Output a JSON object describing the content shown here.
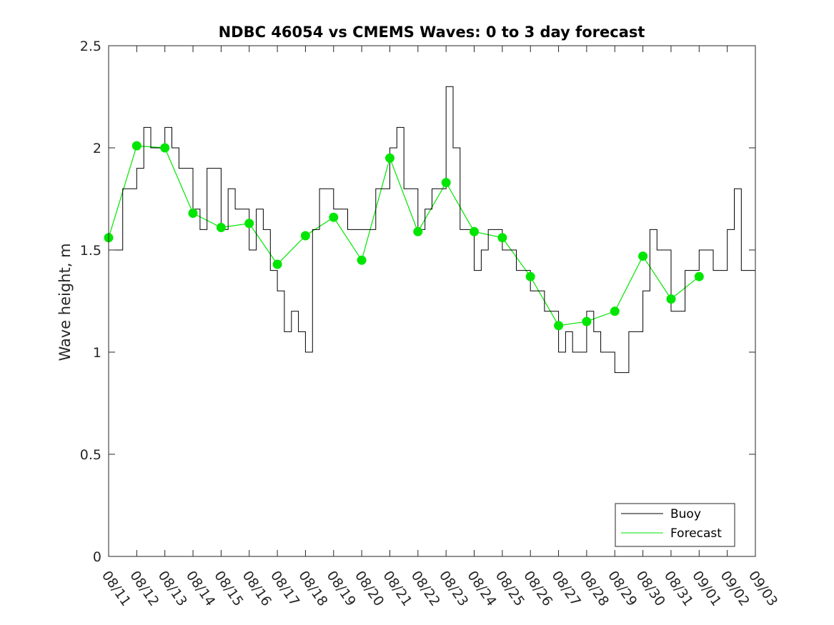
{
  "chart_data": {
    "type": "line",
    "title": "NDBC 46054 vs CMEMS Waves: 0 to 3 day forecast",
    "xlabel": "",
    "ylabel": "Wave height, m",
    "ylim": [
      0,
      2.5
    ],
    "yticks": [
      0,
      0.5,
      1,
      1.5,
      2,
      2.5
    ],
    "ytick_labels": [
      "0",
      "0.5",
      "1",
      "1.5",
      "2",
      "2.5"
    ],
    "xlim_days": [
      0,
      23
    ],
    "xtick_labels": [
      "08/11",
      "08/12",
      "08/13",
      "08/14",
      "08/15",
      "08/16",
      "08/17",
      "08/18",
      "08/19",
      "08/20",
      "08/21",
      "08/22",
      "08/23",
      "08/24",
      "08/25",
      "08/26",
      "08/27",
      "08/28",
      "08/29",
      "08/30",
      "08/31",
      "09/01",
      "09/02",
      "09/03"
    ],
    "grid": false,
    "legend_position": "bottom-right",
    "colors": {
      "buoy": "#000000",
      "forecast": "#00e600",
      "axis": "#262626"
    },
    "series": [
      {
        "name": "Buoy",
        "style": "step",
        "x": [
          "08/11 00:00",
          "08/11 12:00",
          "08/12 00:00",
          "08/12 06:00",
          "08/12 12:00",
          "08/13 00:00",
          "08/13 06:00",
          "08/13 12:00",
          "08/14 00:00",
          "08/14 06:00",
          "08/14 12:00",
          "08/15 00:00",
          "08/15 06:00",
          "08/15 12:00",
          "08/16 00:00",
          "08/16 06:00",
          "08/16 12:00",
          "08/16 18:00",
          "08/17 00:00",
          "08/17 06:00",
          "08/17 12:00",
          "08/17 18:00",
          "08/18 00:00",
          "08/18 06:00",
          "08/18 12:00",
          "08/19 00:00",
          "08/19 12:00",
          "08/20 00:00",
          "08/20 12:00",
          "08/21 00:00",
          "08/21 06:00",
          "08/21 12:00",
          "08/22 00:00",
          "08/22 06:00",
          "08/22 12:00",
          "08/23 00:00",
          "08/23 06:00",
          "08/23 12:00",
          "08/24 00:00",
          "08/24 06:00",
          "08/24 12:00",
          "08/25 00:00",
          "08/25 12:00",
          "08/26 00:00",
          "08/26 12:00",
          "08/27 00:00",
          "08/27 06:00",
          "08/27 12:00",
          "08/28 00:00",
          "08/28 06:00",
          "08/28 12:00",
          "08/29 00:00",
          "08/29 12:00",
          "08/30 00:00",
          "08/30 06:00",
          "08/30 12:00",
          "08/31 00:00",
          "08/31 12:00",
          "09/01 00:00",
          "09/01 12:00",
          "09/02 00:00",
          "09/02 06:00",
          "09/02 12:00",
          "09/03 00:00"
        ],
        "values": [
          1.5,
          1.8,
          1.9,
          2.1,
          2.0,
          2.1,
          2.0,
          1.9,
          1.7,
          1.6,
          1.9,
          1.6,
          1.8,
          1.7,
          1.5,
          1.7,
          1.6,
          1.4,
          1.3,
          1.1,
          1.2,
          1.1,
          1.0,
          1.6,
          1.8,
          1.7,
          1.6,
          1.6,
          1.8,
          2.0,
          2.1,
          1.8,
          1.6,
          1.7,
          1.8,
          2.3,
          2.0,
          1.6,
          1.4,
          1.5,
          1.6,
          1.5,
          1.4,
          1.3,
          1.2,
          1.0,
          1.1,
          1.0,
          1.2,
          1.1,
          1.0,
          0.9,
          1.1,
          1.3,
          1.6,
          1.5,
          1.2,
          1.4,
          1.5,
          1.4,
          1.6,
          1.8,
          1.4,
          1.5
        ]
      },
      {
        "name": "Forecast",
        "style": "line",
        "x": [
          "08/11 00:00",
          "08/12 00:00",
          "08/13 00:00",
          "08/14 00:00",
          "08/15 00:00",
          "08/16 00:00",
          "08/17 00:00",
          "08/18 00:00",
          "08/19 00:00",
          "08/20 00:00",
          "08/21 00:00",
          "08/22 00:00",
          "08/23 00:00",
          "08/24 00:00",
          "08/25 00:00",
          "08/26 00:00",
          "08/27 00:00",
          "08/28 00:00",
          "08/29 00:00",
          "08/30 00:00",
          "08/31 00:00",
          "09/01 00:00"
        ],
        "values": [
          1.56,
          2.01,
          2.0,
          1.68,
          1.61,
          1.63,
          1.43,
          1.57,
          1.66,
          1.45,
          1.95,
          1.59,
          1.83,
          1.59,
          1.56,
          1.37,
          1.13,
          1.15,
          1.2,
          1.47,
          1.26,
          1.37
        ],
        "markers": true
      }
    ]
  }
}
